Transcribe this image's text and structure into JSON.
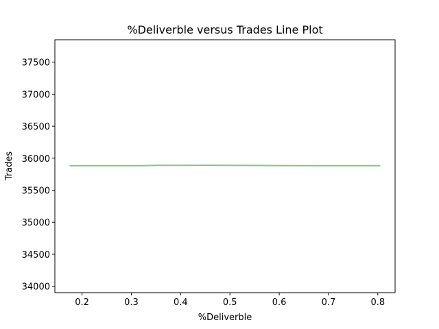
{
  "chart_data": {
    "type": "line",
    "title": "%Deliverble versus Trades Line Plot",
    "xlabel": "%Deliverble",
    "ylabel": "Trades",
    "xlim": [
      0.145,
      0.835
    ],
    "ylim": [
      33900,
      37850
    ],
    "xticks": [
      0.2,
      0.3,
      0.4,
      0.5,
      0.6,
      0.7,
      0.8
    ],
    "xtick_labels": [
      "0.2",
      "0.3",
      "0.4",
      "0.5",
      "0.6",
      "0.7",
      "0.8"
    ],
    "yticks": [
      34000,
      34500,
      35000,
      35500,
      36000,
      36500,
      37000,
      37500
    ],
    "ytick_labels": [
      "34000",
      "34500",
      "35000",
      "35500",
      "36000",
      "36500",
      "37000",
      "37500"
    ],
    "grid": false,
    "series": [
      {
        "color": "#7fc97f",
        "x": [
          0.175,
          0.32,
          0.35,
          0.4,
          0.45,
          0.5,
          0.55,
          0.6,
          0.7,
          0.805
        ],
        "y": [
          35883,
          35884,
          35888,
          35889,
          35890,
          35889,
          35887,
          35885,
          35884,
          35883
        ]
      }
    ]
  }
}
